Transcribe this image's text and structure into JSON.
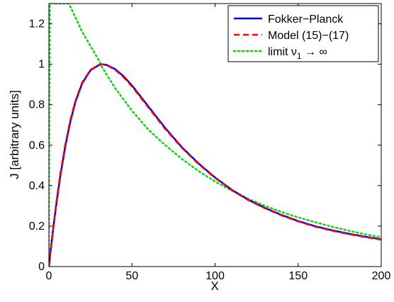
{
  "chart_data": {
    "type": "line",
    "title": "",
    "xlabel": "X",
    "ylabel": "J [arbitrary units]",
    "xlim": [
      0,
      200
    ],
    "ylim": [
      0,
      1.3
    ],
    "x_ticks": [
      0,
      50,
      100,
      150,
      200
    ],
    "x_tick_labels": [
      "0",
      "50",
      "100",
      "150",
      "200"
    ],
    "y_ticks": [
      0,
      0.2,
      0.4,
      0.6,
      0.8,
      1,
      1.2
    ],
    "y_tick_labels": [
      "0",
      "0.2",
      "0.4",
      "0.6",
      "0.8",
      "1",
      "1.2"
    ],
    "grid": false,
    "legend_position": "top-right",
    "series": [
      {
        "name": "Fokker−Planck",
        "color": "#0000ff",
        "dash": "solid",
        "x": [
          0,
          1,
          2,
          3,
          5,
          7,
          10,
          13,
          16,
          20,
          25,
          30,
          32,
          35,
          40,
          45,
          50,
          60,
          70,
          80,
          90,
          100,
          110,
          120,
          130,
          140,
          150,
          160,
          170,
          180,
          190,
          200
        ],
        "y": [
          0,
          0.075,
          0.145,
          0.215,
          0.34,
          0.455,
          0.6,
          0.72,
          0.815,
          0.905,
          0.97,
          0.996,
          1.0,
          0.996,
          0.975,
          0.94,
          0.895,
          0.79,
          0.685,
          0.59,
          0.51,
          0.44,
          0.38,
          0.33,
          0.29,
          0.255,
          0.225,
          0.2,
          0.18,
          0.163,
          0.148,
          0.135
        ]
      },
      {
        "name": "Model (15)−(17)",
        "color": "#ff0000",
        "dash": "dashed",
        "x": [
          0,
          1,
          2,
          3,
          5,
          7,
          10,
          13,
          16,
          20,
          25,
          30,
          32,
          35,
          40,
          45,
          50,
          60,
          70,
          80,
          90,
          100,
          110,
          120,
          130,
          140,
          150,
          160,
          170,
          180,
          190,
          200
        ],
        "y": [
          0,
          0.08,
          0.15,
          0.222,
          0.35,
          0.465,
          0.61,
          0.728,
          0.82,
          0.91,
          0.972,
          0.997,
          1.0,
          0.995,
          0.972,
          0.935,
          0.89,
          0.785,
          0.68,
          0.587,
          0.507,
          0.438,
          0.378,
          0.328,
          0.288,
          0.253,
          0.223,
          0.198,
          0.178,
          0.161,
          0.146,
          0.133
        ]
      },
      {
        "name": "limit ν1 → ∞",
        "color": "#00dd00",
        "dash": "dotted",
        "x": [
          0,
          0.2,
          0.5,
          1,
          2,
          5,
          10,
          12,
          20,
          30,
          32,
          40,
          50,
          60,
          70,
          80,
          90,
          100,
          110,
          120,
          130,
          140,
          150,
          160,
          170,
          180,
          190,
          200
        ],
        "y": [
          0,
          0.8,
          1.3,
          1.3,
          1.3,
          1.3,
          1.3,
          1.3,
          1.16,
          1.02,
          0.985,
          0.88,
          0.77,
          0.675,
          0.6,
          0.532,
          0.472,
          0.42,
          0.375,
          0.335,
          0.3,
          0.27,
          0.243,
          0.22,
          0.198,
          0.178,
          0.16,
          0.145
        ]
      }
    ],
    "legend": [
      {
        "label": "Fokker−Planck",
        "color": "#0000ff",
        "dash": "solid"
      },
      {
        "label": "Model (15)−(17)",
        "color": "#ff0000",
        "dash": "dashed"
      },
      {
        "label_main": "limit ν",
        "label_sub": "1",
        "label_tail": " → ∞",
        "color": "#00dd00",
        "dash": "dotted"
      }
    ]
  }
}
